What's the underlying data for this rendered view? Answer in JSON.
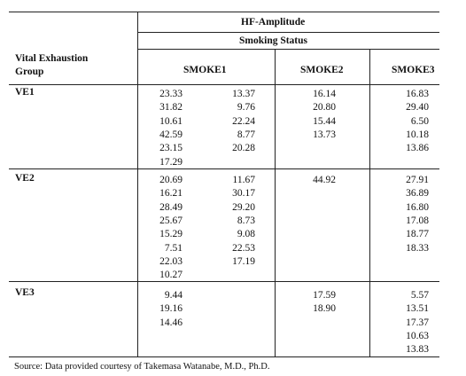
{
  "header": {
    "main": "HF-Amplitude",
    "sub": "Smoking Status",
    "row_header_line1": "Vital Exhaustion",
    "row_header_line2": "Group",
    "columns": [
      "SMOKE1",
      "SMOKE2",
      "SMOKE3"
    ]
  },
  "rows": [
    {
      "label": "VE1",
      "smoke1_a": [
        "23.33",
        "31.82",
        "10.61",
        "42.59",
        "23.15",
        "17.29"
      ],
      "smoke1_b": [
        "13.37",
        "9.76",
        "22.24",
        "8.77",
        "20.28"
      ],
      "smoke2": [
        "16.14",
        "20.80",
        "15.44",
        "13.73"
      ],
      "smoke3": [
        "16.83",
        "29.40",
        "6.50",
        "10.18",
        "13.86"
      ]
    },
    {
      "label": "VE2",
      "smoke1_a": [
        "20.69",
        "16.21",
        "28.49",
        "25.67",
        "15.29",
        "7.51",
        "22.03",
        "10.27"
      ],
      "smoke1_b": [
        "11.67",
        "30.17",
        "29.20",
        "8.73",
        "9.08",
        "22.53",
        "17.19"
      ],
      "smoke2": [
        "44.92"
      ],
      "smoke3": [
        "27.91",
        "36.89",
        "16.80",
        "17.08",
        "18.77",
        "18.33"
      ]
    },
    {
      "label": "VE3",
      "smoke1_a": [
        "9.44",
        "19.16",
        "14.46"
      ],
      "smoke1_b": [],
      "smoke2": [
        "17.59",
        "18.90"
      ],
      "smoke3": [
        "5.57",
        "13.51",
        "17.37",
        "10.63",
        "13.83"
      ]
    }
  ],
  "source": "Source: Data provided courtesy of Takemasa Watanabe, M.D., Ph.D."
}
